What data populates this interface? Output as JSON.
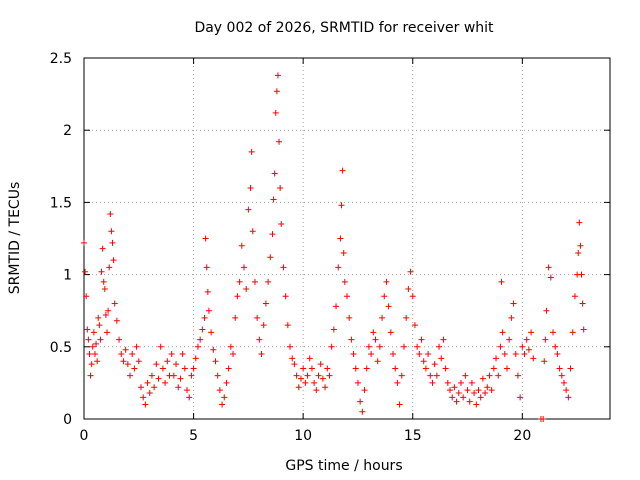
{
  "chart_data": {
    "type": "scatter",
    "title": "Day 002 of 2026, SRMTID for receiver whit",
    "xlabel": "GPS time / hours",
    "ylabel": "SRMTID / TECUs",
    "xlim": [
      0,
      24
    ],
    "ylim": [
      0,
      2.5
    ],
    "xticks": [
      0,
      5,
      10,
      15,
      20
    ],
    "yticks": [
      0,
      0.5,
      1,
      1.5,
      2,
      2.5
    ],
    "grid": true,
    "marker": "+",
    "color": "#ff0000",
    "series": [
      {
        "name": "SRMTID",
        "points": [
          [
            0.0,
            1.22
          ],
          [
            0.05,
            1.02
          ],
          [
            0.1,
            0.85
          ],
          [
            0.15,
            0.62
          ],
          [
            0.2,
            0.55
          ],
          [
            0.25,
            0.45
          ],
          [
            0.3,
            0.3
          ],
          [
            0.35,
            0.38
          ],
          [
            0.4,
            0.5
          ],
          [
            0.45,
            0.6
          ],
          [
            0.5,
            0.45
          ],
          [
            0.55,
            0.52
          ],
          [
            0.6,
            0.4
          ],
          [
            0.65,
            0.7
          ],
          [
            0.7,
            0.65
          ],
          [
            0.75,
            0.55
          ],
          [
            0.8,
            1.02
          ],
          [
            0.85,
            1.18
          ],
          [
            0.9,
            0.95
          ],
          [
            0.95,
            0.9
          ],
          [
            1.0,
            0.72
          ],
          [
            1.05,
            0.6
          ],
          [
            1.1,
            0.75
          ],
          [
            1.15,
            1.05
          ],
          [
            1.2,
            1.42
          ],
          [
            1.25,
            1.3
          ],
          [
            1.3,
            1.22
          ],
          [
            1.35,
            1.1
          ],
          [
            1.4,
            0.8
          ],
          [
            1.5,
            0.68
          ],
          [
            1.6,
            0.55
          ],
          [
            1.7,
            0.45
          ],
          [
            1.8,
            0.4
          ],
          [
            1.9,
            0.48
          ],
          [
            2.0,
            0.38
          ],
          [
            2.1,
            0.3
          ],
          [
            2.2,
            0.45
          ],
          [
            2.3,
            0.35
          ],
          [
            2.4,
            0.5
          ],
          [
            2.5,
            0.4
          ],
          [
            2.6,
            0.22
          ],
          [
            2.7,
            0.15
          ],
          [
            2.8,
            0.1
          ],
          [
            2.9,
            0.25
          ],
          [
            3.0,
            0.18
          ],
          [
            3.1,
            0.3
          ],
          [
            3.2,
            0.22
          ],
          [
            3.3,
            0.38
          ],
          [
            3.4,
            0.28
          ],
          [
            3.5,
            0.5
          ],
          [
            3.6,
            0.35
          ],
          [
            3.7,
            0.25
          ],
          [
            3.8,
            0.4
          ],
          [
            3.9,
            0.3
          ],
          [
            4.0,
            0.45
          ],
          [
            4.1,
            0.3
          ],
          [
            4.2,
            0.38
          ],
          [
            4.3,
            0.22
          ],
          [
            4.4,
            0.28
          ],
          [
            4.5,
            0.45
          ],
          [
            4.6,
            0.35
          ],
          [
            4.7,
            0.2
          ],
          [
            4.8,
            0.15
          ],
          [
            4.9,
            0.3
          ],
          [
            5.0,
            0.35
          ],
          [
            5.1,
            0.42
          ],
          [
            5.2,
            0.5
          ],
          [
            5.3,
            0.55
          ],
          [
            5.4,
            0.62
          ],
          [
            5.5,
            0.7
          ],
          [
            5.55,
            1.25
          ],
          [
            5.6,
            1.05
          ],
          [
            5.65,
            0.88
          ],
          [
            5.7,
            0.75
          ],
          [
            5.8,
            0.6
          ],
          [
            5.9,
            0.48
          ],
          [
            6.0,
            0.4
          ],
          [
            6.1,
            0.3
          ],
          [
            6.2,
            0.2
          ],
          [
            6.3,
            0.1
          ],
          [
            6.4,
            0.15
          ],
          [
            6.5,
            0.25
          ],
          [
            6.6,
            0.35
          ],
          [
            6.7,
            0.5
          ],
          [
            6.8,
            0.45
          ],
          [
            6.9,
            0.7
          ],
          [
            7.0,
            0.85
          ],
          [
            7.1,
            0.95
          ],
          [
            7.2,
            1.2
          ],
          [
            7.3,
            1.05
          ],
          [
            7.4,
            0.9
          ],
          [
            7.5,
            1.45
          ],
          [
            7.6,
            1.6
          ],
          [
            7.65,
            1.85
          ],
          [
            7.7,
            1.3
          ],
          [
            7.8,
            0.95
          ],
          [
            7.9,
            0.7
          ],
          [
            8.0,
            0.55
          ],
          [
            8.1,
            0.45
          ],
          [
            8.2,
            0.65
          ],
          [
            8.3,
            0.8
          ],
          [
            8.4,
            0.95
          ],
          [
            8.5,
            1.12
          ],
          [
            8.6,
            1.28
          ],
          [
            8.65,
            1.52
          ],
          [
            8.7,
            1.7
          ],
          [
            8.75,
            2.12
          ],
          [
            8.8,
            2.27
          ],
          [
            8.85,
            2.38
          ],
          [
            8.9,
            1.92
          ],
          [
            8.95,
            1.6
          ],
          [
            9.0,
            1.35
          ],
          [
            9.1,
            1.05
          ],
          [
            9.2,
            0.85
          ],
          [
            9.3,
            0.65
          ],
          [
            9.4,
            0.5
          ],
          [
            9.5,
            0.42
          ],
          [
            9.6,
            0.38
          ],
          [
            9.7,
            0.3
          ],
          [
            9.8,
            0.22
          ],
          [
            9.9,
            0.28
          ],
          [
            10.0,
            0.35
          ],
          [
            10.1,
            0.25
          ],
          [
            10.2,
            0.3
          ],
          [
            10.3,
            0.42
          ],
          [
            10.4,
            0.35
          ],
          [
            10.5,
            0.25
          ],
          [
            10.6,
            0.2
          ],
          [
            10.7,
            0.3
          ],
          [
            10.8,
            0.38
          ],
          [
            10.9,
            0.28
          ],
          [
            11.0,
            0.22
          ],
          [
            11.1,
            0.35
          ],
          [
            11.2,
            0.3
          ],
          [
            11.3,
            0.5
          ],
          [
            11.4,
            0.62
          ],
          [
            11.5,
            0.78
          ],
          [
            11.6,
            1.05
          ],
          [
            11.7,
            1.25
          ],
          [
            11.75,
            1.48
          ],
          [
            11.8,
            1.72
          ],
          [
            11.85,
            1.15
          ],
          [
            11.9,
            0.95
          ],
          [
            12.0,
            0.85
          ],
          [
            12.1,
            0.7
          ],
          [
            12.2,
            0.55
          ],
          [
            12.3,
            0.45
          ],
          [
            12.4,
            0.35
          ],
          [
            12.5,
            0.25
          ],
          [
            12.6,
            0.12
          ],
          [
            12.7,
            0.05
          ],
          [
            12.8,
            0.2
          ],
          [
            12.9,
            0.35
          ],
          [
            13.0,
            0.5
          ],
          [
            13.1,
            0.45
          ],
          [
            13.2,
            0.6
          ],
          [
            13.3,
            0.55
          ],
          [
            13.4,
            0.4
          ],
          [
            13.5,
            0.5
          ],
          [
            13.6,
            0.7
          ],
          [
            13.7,
            0.85
          ],
          [
            13.8,
            0.95
          ],
          [
            13.9,
            0.78
          ],
          [
            14.0,
            0.6
          ],
          [
            14.1,
            0.45
          ],
          [
            14.2,
            0.35
          ],
          [
            14.3,
            0.25
          ],
          [
            14.4,
            0.1
          ],
          [
            14.5,
            0.3
          ],
          [
            14.6,
            0.5
          ],
          [
            14.7,
            0.7
          ],
          [
            14.8,
            0.9
          ],
          [
            14.9,
            1.02
          ],
          [
            15.0,
            0.85
          ],
          [
            15.1,
            0.65
          ],
          [
            15.2,
            0.5
          ],
          [
            15.3,
            0.45
          ],
          [
            15.4,
            0.55
          ],
          [
            15.5,
            0.4
          ],
          [
            15.6,
            0.35
          ],
          [
            15.7,
            0.45
          ],
          [
            15.8,
            0.3
          ],
          [
            15.9,
            0.25
          ],
          [
            16.0,
            0.38
          ],
          [
            16.1,
            0.3
          ],
          [
            16.2,
            0.5
          ],
          [
            16.3,
            0.42
          ],
          [
            16.4,
            0.55
          ],
          [
            16.5,
            0.35
          ],
          [
            16.6,
            0.25
          ],
          [
            16.7,
            0.2
          ],
          [
            16.8,
            0.15
          ],
          [
            16.9,
            0.22
          ],
          [
            17.0,
            0.12
          ],
          [
            17.1,
            0.18
          ],
          [
            17.2,
            0.25
          ],
          [
            17.3,
            0.15
          ],
          [
            17.4,
            0.3
          ],
          [
            17.5,
            0.2
          ],
          [
            17.6,
            0.12
          ],
          [
            17.7,
            0.25
          ],
          [
            17.8,
            0.18
          ],
          [
            17.9,
            0.1
          ],
          [
            18.0,
            0.2
          ],
          [
            18.1,
            0.15
          ],
          [
            18.2,
            0.28
          ],
          [
            18.3,
            0.18
          ],
          [
            18.4,
            0.22
          ],
          [
            18.5,
            0.3
          ],
          [
            18.6,
            0.2
          ],
          [
            18.7,
            0.35
          ],
          [
            18.8,
            0.42
          ],
          [
            18.9,
            0.3
          ],
          [
            19.0,
            0.5
          ],
          [
            19.05,
            0.95
          ],
          [
            19.1,
            0.6
          ],
          [
            19.2,
            0.45
          ],
          [
            19.3,
            0.35
          ],
          [
            19.4,
            0.55
          ],
          [
            19.5,
            0.7
          ],
          [
            19.6,
            0.8
          ],
          [
            19.7,
            0.45
          ],
          [
            19.8,
            0.3
          ],
          [
            19.9,
            0.15
          ],
          [
            20.0,
            0.5
          ],
          [
            20.1,
            0.45
          ],
          [
            20.2,
            0.55
          ],
          [
            20.3,
            0.48
          ],
          [
            20.4,
            0.6
          ],
          [
            20.5,
            0.42
          ],
          [
            20.85,
            0.0
          ],
          [
            20.95,
            0.0
          ],
          [
            21.0,
            0.4
          ],
          [
            21.05,
            0.55
          ],
          [
            21.1,
            0.75
          ],
          [
            21.2,
            1.05
          ],
          [
            21.3,
            0.98
          ],
          [
            21.4,
            0.6
          ],
          [
            21.5,
            0.5
          ],
          [
            21.6,
            0.45
          ],
          [
            21.7,
            0.35
          ],
          [
            21.8,
            0.3
          ],
          [
            21.9,
            0.25
          ],
          [
            22.0,
            0.2
          ],
          [
            22.1,
            0.15
          ],
          [
            22.2,
            0.35
          ],
          [
            22.3,
            0.6
          ],
          [
            22.4,
            0.85
          ],
          [
            22.5,
            1.0
          ],
          [
            22.55,
            1.15
          ],
          [
            22.6,
            1.36
          ],
          [
            22.65,
            1.2
          ],
          [
            22.7,
            1.0
          ],
          [
            22.75,
            0.8
          ],
          [
            22.8,
            0.62
          ]
        ]
      }
    ]
  }
}
